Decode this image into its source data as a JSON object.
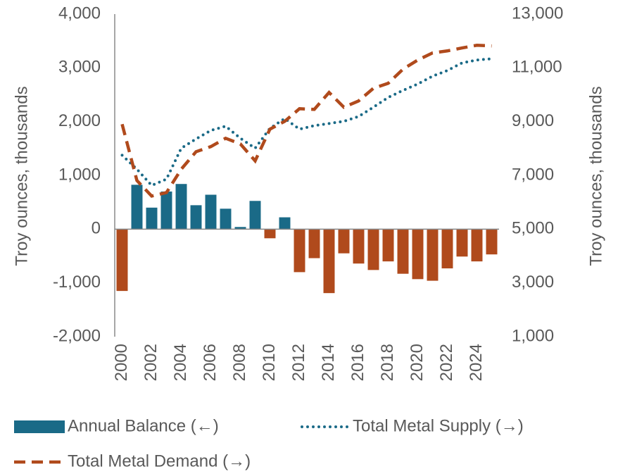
{
  "chart_data": {
    "type": "bar_line",
    "categories": [
      "2000",
      null,
      "2002",
      null,
      "2004",
      null,
      "2006",
      null,
      "2008",
      null,
      "2010",
      null,
      "2012",
      null,
      "2014",
      null,
      "2016",
      null,
      "2018",
      null,
      "2020",
      null,
      "2022",
      null,
      "2024",
      null
    ],
    "series": [
      {
        "name": "Annual Balance (←)",
        "type": "bar",
        "axis": "y",
        "color": "#1a6a87",
        "negative_color": "#b04a1c",
        "values": [
          -1150,
          825,
          400,
          700,
          840,
          445,
          640,
          380,
          40,
          525,
          -170,
          220,
          -800,
          -540,
          -1190,
          -450,
          -640,
          -760,
          -600,
          -830,
          -930,
          -960,
          -730,
          -510,
          -600,
          -470
        ]
      },
      {
        "name": "Total Metal Supply (→)",
        "type": "line",
        "style": "dotted",
        "axis": "y2",
        "color": "#1a6a87",
        "values": [
          7750,
          7230,
          6625,
          6860,
          8010,
          8355,
          8670,
          8830,
          8380,
          8010,
          8750,
          9115,
          8720,
          8850,
          8930,
          9010,
          9190,
          9535,
          9900,
          10160,
          10400,
          10690,
          10900,
          11185,
          11290,
          11340
        ]
      },
      {
        "name": "Total Metal Demand (→)",
        "type": "line",
        "style": "dashed",
        "axis": "y2",
        "color": "#b04a1c",
        "values": [
          8905,
          6810,
          6230,
          6360,
          7230,
          7880,
          8070,
          8380,
          8170,
          7540,
          8720,
          9010,
          9480,
          9455,
          10085,
          9535,
          9770,
          10240,
          10425,
          10950,
          11290,
          11555,
          11630,
          11740,
          11840,
          11815
        ]
      }
    ],
    "ylabel": "Troy ounces, thousands",
    "y2label": "Troy ounces, thousands",
    "ylim": [
      -2000,
      4000
    ],
    "yticks": [
      {
        "value": -2000,
        "label": "-2,000"
      },
      {
        "value": -1000,
        "label": "-1,000"
      },
      0,
      {
        "value": 1000,
        "label": "1,000"
      },
      {
        "value": 2000,
        "label": "2,000"
      },
      {
        "value": 3000,
        "label": "3,000"
      },
      {
        "value": 4000,
        "label": "4,000"
      }
    ],
    "y2lim": [
      1000,
      13000
    ],
    "y2ticks": [
      {
        "value": 1000,
        "label": "1,000"
      },
      {
        "value": 3000,
        "label": "3,000"
      },
      {
        "value": 5000,
        "label": "5,000"
      },
      {
        "value": 7000,
        "label": "7,000"
      },
      {
        "value": 9000,
        "label": "9,000"
      },
      {
        "value": 11000,
        "label": "11,000"
      },
      {
        "value": 13000,
        "label": "13,000"
      }
    ],
    "legend": "bottom"
  }
}
